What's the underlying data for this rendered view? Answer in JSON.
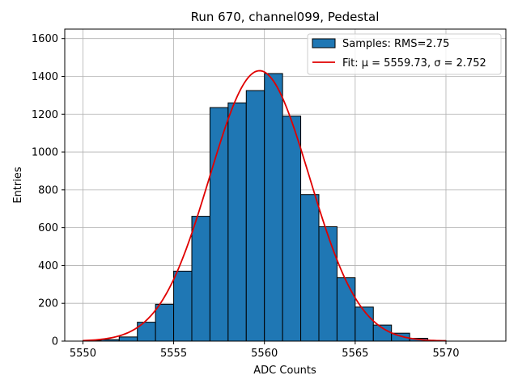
{
  "chart_data": {
    "type": "bar",
    "title": "Run 670, channel099, Pedestal",
    "xlabel": "ADC Counts",
    "ylabel": "Entries",
    "xlim": [
      5549.0,
      5573.3
    ],
    "ylim": [
      0,
      1650
    ],
    "xticks": [
      5550,
      5555,
      5560,
      5565,
      5570
    ],
    "yticks": [
      0,
      200,
      400,
      600,
      800,
      1000,
      1200,
      1400,
      1600
    ],
    "grid": true,
    "legend_position": "top-right",
    "bin_width": 1,
    "bins": [
      {
        "x": 5550,
        "y": 3
      },
      {
        "x": 5551,
        "y": 8
      },
      {
        "x": 5552,
        "y": 22
      },
      {
        "x": 5553,
        "y": 100
      },
      {
        "x": 5554,
        "y": 195
      },
      {
        "x": 5555,
        "y": 370
      },
      {
        "x": 5556,
        "y": 660
      },
      {
        "x": 5557,
        "y": 1235
      },
      {
        "x": 5558,
        "y": 1260
      },
      {
        "x": 5559,
        "y": 1325
      },
      {
        "x": 5560,
        "y": 1415
      },
      {
        "x": 5561,
        "y": 1190
      },
      {
        "x": 5562,
        "y": 775
      },
      {
        "x": 5563,
        "y": 605
      },
      {
        "x": 5564,
        "y": 335
      },
      {
        "x": 5565,
        "y": 180
      },
      {
        "x": 5566,
        "y": 85
      },
      {
        "x": 5567,
        "y": 42
      },
      {
        "x": 5568,
        "y": 15
      },
      {
        "x": 5569,
        "y": 3
      }
    ],
    "fit": {
      "mu": 5559.73,
      "sigma": 2.752,
      "amplitude": 1430,
      "xrange": [
        5550,
        5570
      ]
    },
    "series": [
      {
        "name": "Samples: RMS=2.75",
        "kind": "histogram",
        "color": "#1f77b4",
        "edge_color": "#000000"
      },
      {
        "name": "Fit: μ = 5559.73, σ = 2.752",
        "kind": "line",
        "color": "#e00000"
      }
    ]
  }
}
